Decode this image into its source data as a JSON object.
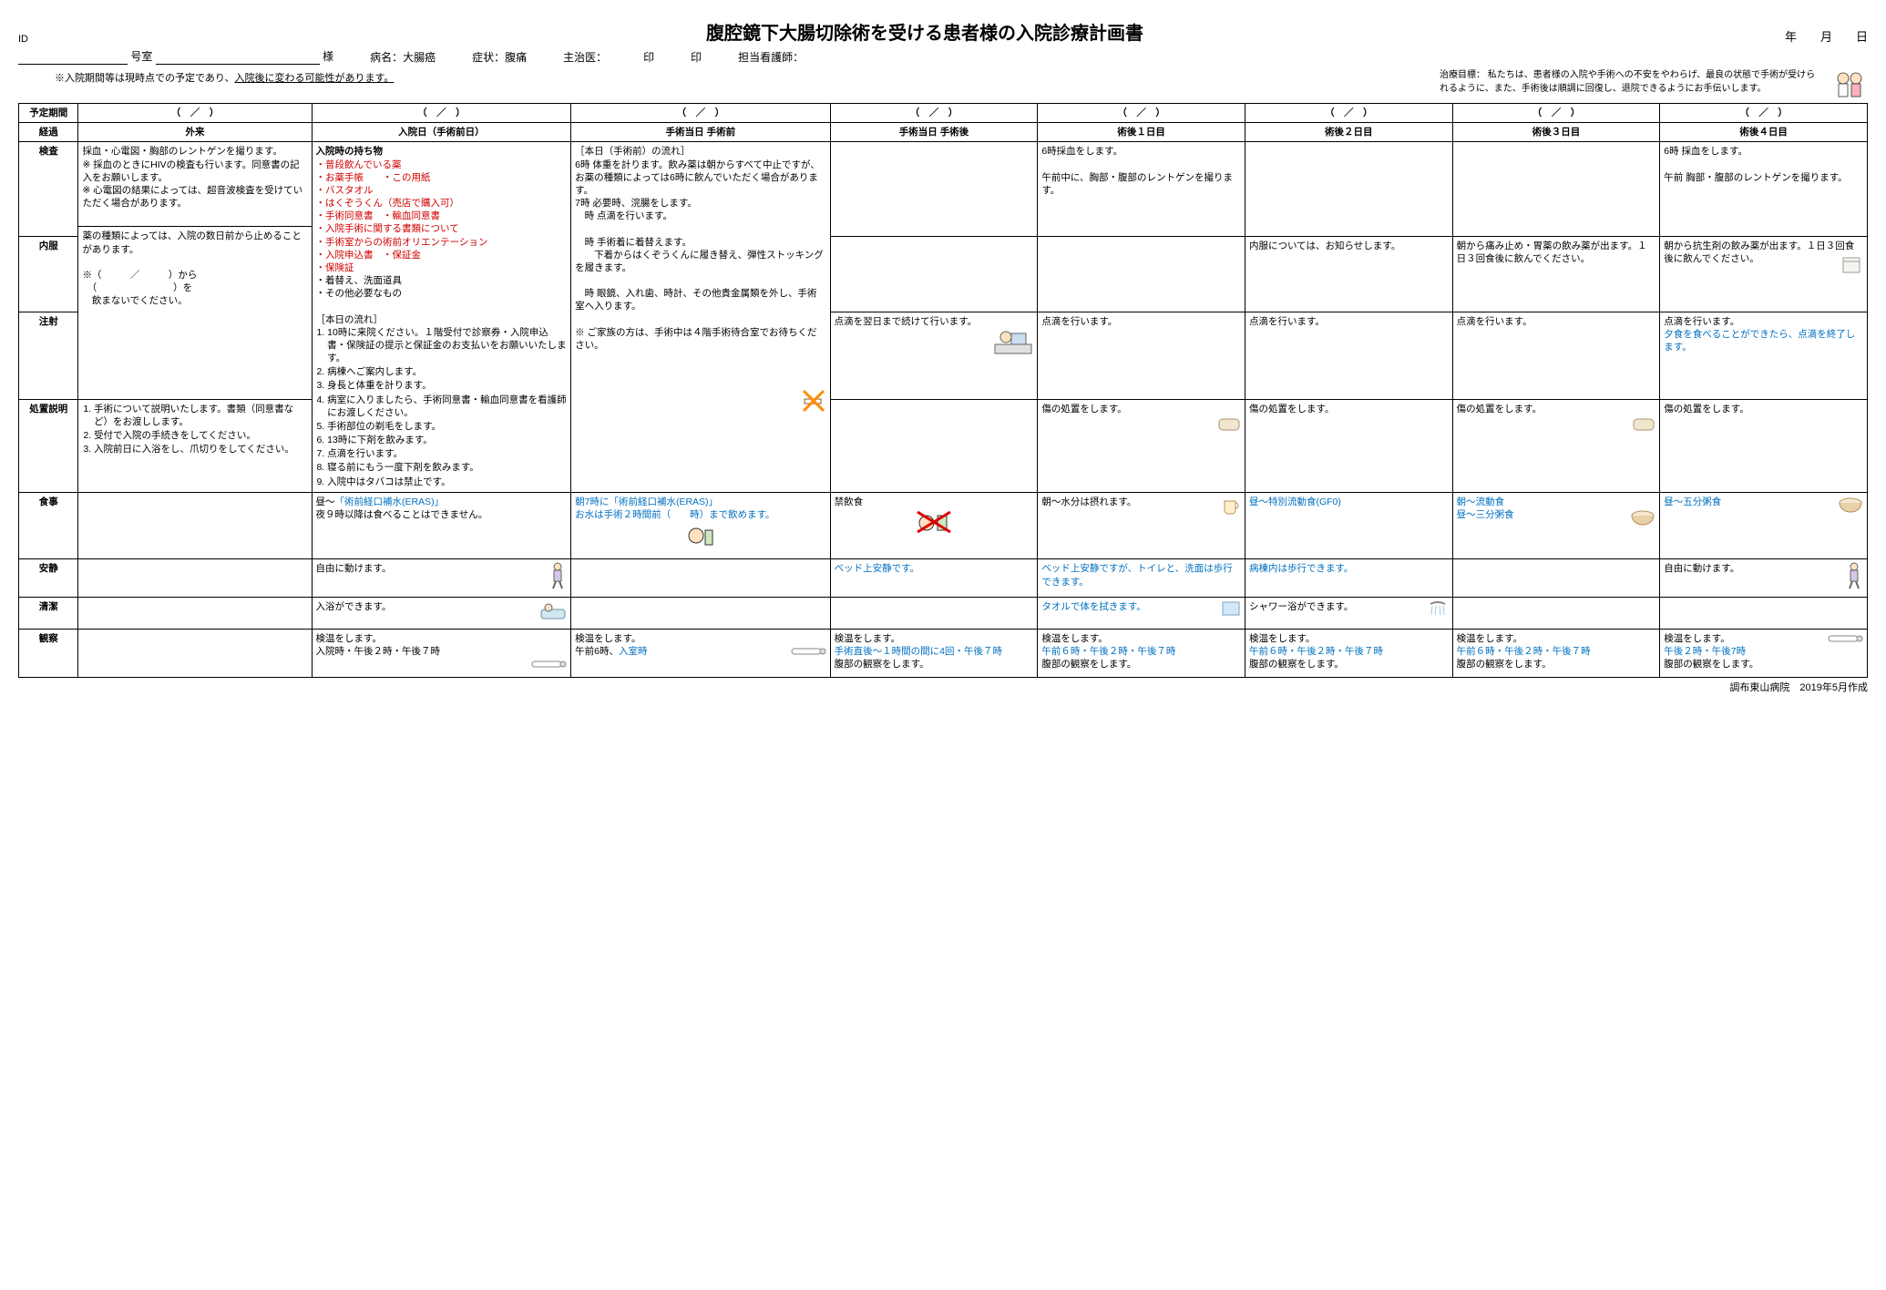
{
  "header": {
    "id_label": "ID",
    "title": "腹腔鏡下大腸切除術を受ける患者様の入院診療計画書",
    "date_label": "年　　月　　日",
    "room_label": "号室",
    "patient_suffix": "様",
    "disease_label": "病名：",
    "disease_value": "大腸癌",
    "symptom_label": "症状：",
    "symptom_value": "腹痛",
    "doctor_label": "主治医：",
    "seal1": "印",
    "seal2": "印",
    "nurse_label": "担当看護師：",
    "goal_label": "治療目標：",
    "goal_text": "私たちは、患者様の入院や手術への不安をやわらげ、最良の状態で手術が受けられるように、また、手術後は順調に回復し、退院できるようにお手伝いします。",
    "note": "※入院期間等は現時点での予定であり、",
    "note_underline": "入院後に変わる可能性があります。"
  },
  "columns": {
    "period": "予定期間",
    "progress": "経過",
    "date_blank": "（　／　）",
    "outpatient": "外来",
    "admission": "入院日（手術前日）",
    "surgery_pre": "手術当日 手術前",
    "surgery_post": "手術当日 手術後",
    "post1": "術後１日目",
    "post2": "術後２日目",
    "post3": "術後３日目",
    "post4": "術後４日目"
  },
  "rows": {
    "exam": "検査",
    "med": "内服",
    "inject": "注射",
    "treat": "処置説明",
    "meal": "食事",
    "rest": "安静",
    "clean": "清潔",
    "obs": "観察"
  },
  "cells": {
    "exam_out": "採血・心電図・胸部のレントゲンを撮ります。\n※ 採血のときにHIVの検査も行います。同意書の記入をお願いします。\n※ 心電図の結果によっては、超音波検査を受けていただく場合があります。",
    "exam_adm_title": "入院時の持ち物",
    "exam_adm_red": [
      "・普段飲んでいる薬",
      "・お薬手帳　　・この用紙",
      "・バスタオル",
      "・はくぞうくん（売店で購入可）",
      "・手術同意書　・輸血同意書",
      "・入院手術に関する書類について",
      "・手術室からの術前オリエンテーション",
      "・入院申込書　・保証金",
      "・保険証"
    ],
    "exam_adm_black": "・着替え、洗面道具\n・その他必要なもの",
    "exam_pre_title": "［本日（手術前）の流れ］",
    "exam_pre_body": "6時 体重を計ります。飲み薬は朝からすべて中止ですが、お薬の種類によっては6時に飲んでいただく場合があります。\n7時 必要時、浣腸をします。\n　時 点滴を行います。",
    "exam_postop": "",
    "exam_d1": "6時採血をします。\n\n午前中に、胸部・腹部のレントゲンを撮ります。",
    "exam_d4": "6時 採血をします。\n\n午前 胸部・腹部のレントゲンを撮ります。",
    "med_out": "薬の種類によっては、入院の数日前から止めることがあります。\n\n※（　　　／　　　）から\n　（　　　　　　　　）を\n　飲まないでください。",
    "med_adm_title": "［本日の流れ］",
    "med_adm_list": [
      "10時に来院ください。１階受付で診察券・入院申込書・保険証の提示と保証金のお支払いをお願いいたします。",
      "病棟へご案内します。",
      "身長と体重を計ります。",
      "病室に入りましたら、手術同意書・輸血同意書を看護師にお渡しください。",
      "手術部位の剃毛をします。",
      "13時に下剤を飲みます。",
      "点滴を行います。",
      "寝る前にもう一度下剤を飲みます。",
      "入院中はタバコは禁止です。"
    ],
    "med_pre": "　時 手術着に着替えます。\n　　下着からはくぞうくんに履き替え、弾性ストッキングを履きます。",
    "med_d2": "内服については、お知らせします。",
    "med_d3": "朝から痛み止め・胃薬の飲み薬が出ます。１日３回食後に飲んでください。",
    "med_d4": "朝から抗生剤の飲み薬が出ます。１日３回食後に飲んでください。",
    "inject_pre": "　時 眼鏡、入れ歯、時計、その他貴金属類を外し、手術室へ入ります。\n\n※ ご家族の方は、手術中は４階手術待合室でお待ちください。",
    "inject_postop": "点滴を翌日まで続けて行います。",
    "inject_d1": "点滴を行います。",
    "inject_d2": "点滴を行います。",
    "inject_d3": "点滴を行います。",
    "inject_d4a": "点滴を行います。",
    "inject_d4b": "夕食を食べることができたら、点滴を終了します。",
    "treat_out_list": [
      "手術について説明いたします。書類（同意書など）をお渡しします。",
      "受付で入院の手続きをしてください。",
      "入院前日に入浴をし、爪切りをしてください。"
    ],
    "treat_d1": "傷の処置をします。",
    "treat_d2": "傷の処置をします。",
    "treat_d3": "傷の処置をします。",
    "treat_d4": "傷の処置をします。",
    "meal_adm_a": "昼～",
    "meal_adm_b": "「術前経口補水(ERAS)」",
    "meal_adm_c": "夜９時以降は食べることはできません。",
    "meal_pre_a": "朝7時に「術前経口補水(ERAS)」",
    "meal_pre_b": "お水は手術２時間前（　　時）まで飲めます。",
    "meal_postop": "禁飲食",
    "meal_d1": "朝～水分は摂れます。",
    "meal_d2": "昼～特別流動食(GF0)",
    "meal_d3a": "朝～流動食",
    "meal_d3b": "昼～三分粥食",
    "meal_d4": "昼～五分粥食",
    "rest_adm": "自由に動けます。",
    "rest_postop": "ベッド上安静です。",
    "rest_d1a": "ベッド上安静ですが、",
    "rest_d1b": "トイレと、洗面は歩行できます。",
    "rest_d2a": "病棟内は歩行できます。",
    "rest_d4": "自由に動けます。",
    "clean_adm": "入浴ができます。",
    "clean_d1": "タオルで体を拭きます。",
    "clean_d2": "シャワー浴ができます。",
    "obs_adm": "検温をします。\n入院時・午後２時・午後７時",
    "obs_pre_a": "検温をします。",
    "obs_pre_b": "午前6時、",
    "obs_pre_c": "入室時",
    "obs_postop_a": "検温をします。",
    "obs_postop_b": "手術直後～１時間の間に4回・午後７時",
    "obs_postop_c": "腹部の観察をします。",
    "obs_d1_a": "検温をします。",
    "obs_d1_b": "午前６時・午後２時・午後７時",
    "obs_d1_c": "腹部の観察をします。",
    "obs_d2_a": "検温をします。",
    "obs_d2_b": "午前６時・午後２時・午後７時",
    "obs_d2_c": "腹部の観察をします。",
    "obs_d3_a": "検温をします。",
    "obs_d3_b": "午前６時・午後２時・午後７時",
    "obs_d3_c": "腹部の観察をします。",
    "obs_d4_a": "検温をします。",
    "obs_d4_b": "午後２時・午後7時",
    "obs_d4_c": "腹部の観察をします。"
  },
  "footer": "調布東山病院　2019年5月作成",
  "colors": {
    "red": "#d00000",
    "blue": "#0070c0",
    "black": "#000000"
  }
}
